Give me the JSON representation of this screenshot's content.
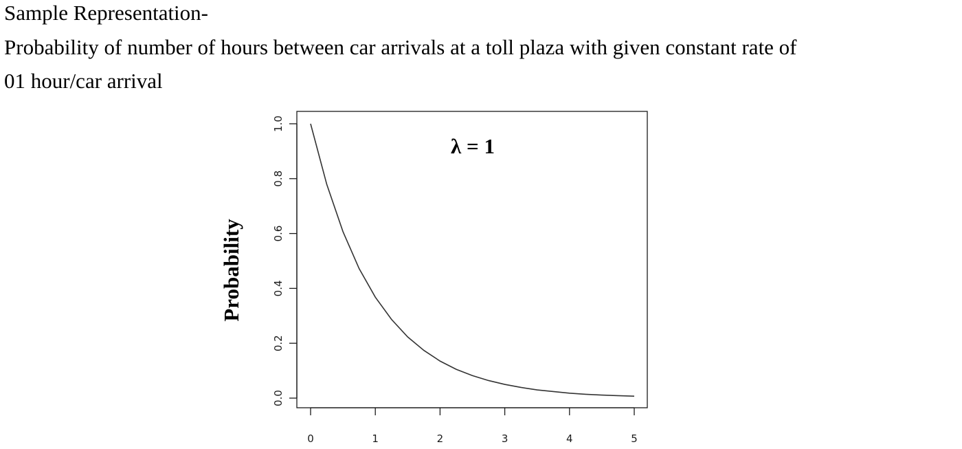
{
  "document": {
    "heading": "Sample Representation-",
    "caption_line1": "Probability of number of hours between car arrivals at a toll plaza with given constant rate of",
    "caption_line2": "01 hour/car arrival"
  },
  "chart_data": {
    "type": "line",
    "title": "",
    "xlabel": "",
    "ylabel": "Probability",
    "annotation": "λ = 1",
    "xlim": [
      0,
      5
    ],
    "ylim": [
      0,
      1
    ],
    "x_ticks": [
      "0",
      "1",
      "2",
      "3",
      "4",
      "5"
    ],
    "y_ticks": [
      "0.0",
      "0.2",
      "0.4",
      "0.6",
      "0.8",
      "1.0"
    ],
    "grid": false,
    "legend": "none",
    "line_color": "#333333",
    "series": [
      {
        "x": [
          0,
          0.25,
          0.5,
          0.75,
          1,
          1.25,
          1.5,
          1.75,
          2,
          2.25,
          2.5,
          2.75,
          3,
          3.25,
          3.5,
          3.75,
          4,
          4.25,
          4.5,
          4.75,
          5
        ],
        "y": [
          1.0,
          0.779,
          0.607,
          0.472,
          0.368,
          0.287,
          0.223,
          0.174,
          0.135,
          0.105,
          0.082,
          0.064,
          0.05,
          0.039,
          0.03,
          0.024,
          0.018,
          0.014,
          0.011,
          0.009,
          0.007
        ]
      }
    ]
  }
}
